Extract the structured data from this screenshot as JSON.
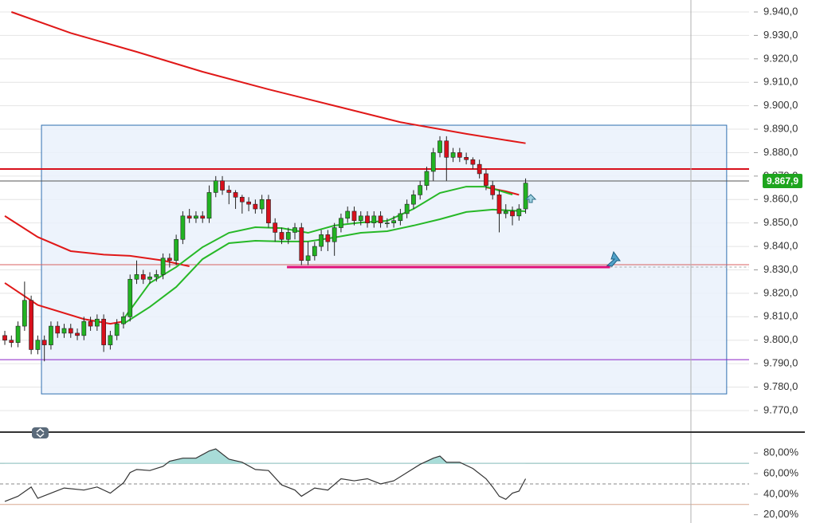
{
  "chart_data": [
    {
      "type": "candlestick",
      "open": [
        9.802,
        9.8,
        9.799,
        9.806,
        9.817,
        9.796,
        9.8,
        9.798,
        9.806,
        9.803,
        9.805,
        9.803,
        9.802,
        9.808,
        9.806,
        9.809,
        9.798,
        9.802,
        9.807,
        9.81,
        9.826,
        9.828,
        9.826,
        9.827,
        9.828,
        9.835,
        9.834,
        9.843,
        9.853,
        9.852,
        9.853,
        9.852,
        9.863,
        9.868,
        9.864,
        9.863,
        9.861,
        9.859,
        9.858,
        9.856,
        9.86,
        9.85,
        9.846,
        9.843,
        9.846,
        9.848,
        9.834,
        9.836,
        9.84,
        9.845,
        9.842,
        9.848,
        9.852,
        9.855,
        9.851,
        9.853,
        9.85,
        9.853,
        9.85,
        9.85,
        9.851,
        9.854,
        9.858,
        9.862,
        9.866,
        9.872,
        9.88,
        9.885,
        9.878,
        9.88,
        9.878,
        9.877,
        9.875,
        9.871,
        9.866,
        9.862,
        9.854,
        9.855,
        9.853,
        9.856
      ],
      "high": [
        9.804,
        9.802,
        9.808,
        9.825,
        9.819,
        9.802,
        9.802,
        9.808,
        9.808,
        9.807,
        9.807,
        9.805,
        9.81,
        9.81,
        9.811,
        9.811,
        9.804,
        9.809,
        9.812,
        9.828,
        9.834,
        9.83,
        9.829,
        9.83,
        9.837,
        9.837,
        9.845,
        9.855,
        9.856,
        9.855,
        9.855,
        9.866,
        9.87,
        9.87,
        9.866,
        9.864,
        9.862,
        9.861,
        9.86,
        9.862,
        9.862,
        9.852,
        9.848,
        9.848,
        9.85,
        9.85,
        9.842,
        9.842,
        9.847,
        9.847,
        9.85,
        9.854,
        9.857,
        9.857,
        9.855,
        9.855,
        9.855,
        9.855,
        9.852,
        9.853,
        9.856,
        9.86,
        9.864,
        9.868,
        9.874,
        9.882,
        9.887,
        9.887,
        9.882,
        9.882,
        9.88,
        9.878,
        9.877,
        9.873,
        9.868,
        9.864,
        9.858,
        9.857,
        9.858,
        9.869
      ],
      "low": [
        9.798,
        9.797,
        9.797,
        9.804,
        9.794,
        9.794,
        9.791,
        9.796,
        9.801,
        9.801,
        9.801,
        9.8,
        9.8,
        9.804,
        9.804,
        9.795,
        9.796,
        9.8,
        9.805,
        9.808,
        9.824,
        9.824,
        9.824,
        9.825,
        9.826,
        9.831,
        9.832,
        9.841,
        9.85,
        9.85,
        9.85,
        9.85,
        9.861,
        9.862,
        9.858,
        9.856,
        9.854,
        9.855,
        9.854,
        9.854,
        9.848,
        9.842,
        9.841,
        9.841,
        9.843,
        9.832,
        9.832,
        9.834,
        9.838,
        9.838,
        9.836,
        9.846,
        9.85,
        9.849,
        9.849,
        9.848,
        9.848,
        9.848,
        9.848,
        9.848,
        9.849,
        9.852,
        9.856,
        9.86,
        9.864,
        9.868,
        9.878,
        9.868,
        9.876,
        9.876,
        9.875,
        9.873,
        9.869,
        9.864,
        9.86,
        9.846,
        9.852,
        9.849,
        9.851,
        9.854
      ],
      "close": [
        9.8,
        9.799,
        9.806,
        9.817,
        9.796,
        9.8,
        9.798,
        9.806,
        9.803,
        9.805,
        9.803,
        9.802,
        9.808,
        9.806,
        9.809,
        9.798,
        9.802,
        9.807,
        9.81,
        9.826,
        9.828,
        9.826,
        9.827,
        9.828,
        9.835,
        9.834,
        9.843,
        9.853,
        9.852,
        9.853,
        9.852,
        9.863,
        9.868,
        9.864,
        9.863,
        9.861,
        9.859,
        9.858,
        9.856,
        9.86,
        9.85,
        9.846,
        9.843,
        9.846,
        9.848,
        9.834,
        9.836,
        9.84,
        9.845,
        9.842,
        9.848,
        9.852,
        9.855,
        9.851,
        9.853,
        9.85,
        9.853,
        9.85,
        9.85,
        9.851,
        9.854,
        9.858,
        9.862,
        9.866,
        9.872,
        9.88,
        9.885,
        9.878,
        9.88,
        9.878,
        9.877,
        9.875,
        9.871,
        9.866,
        9.862,
        9.854,
        9.855,
        9.853,
        9.856,
        9.867
      ],
      "up_color": "#22b322",
      "down_color": "#d8101c",
      "lines": [
        {
          "color": "#e01818",
          "x": [
            1,
            10,
            20,
            30,
            40,
            50,
            60,
            70,
            79
          ],
          "values": [
            9.94,
            9.931,
            9.923,
            9.9145,
            9.907,
            9.9,
            9.893,
            9.888,
            9.884
          ]
        },
        {
          "color": "#e01818",
          "x": [
            0,
            5,
            10,
            15,
            19,
            24,
            28
          ],
          "values": [
            9.853,
            9.844,
            9.838,
            9.8365,
            9.836,
            9.834,
            9.8315
          ]
        },
        {
          "color": "#e01818",
          "x": [
            0,
            5,
            12,
            16,
            18
          ],
          "values": [
            9.8244,
            9.815,
            9.809,
            9.807,
            9.808
          ]
        },
        {
          "color": "#e01818",
          "x": [
            73,
            76,
            78
          ],
          "values": [
            9.8652,
            9.8635,
            9.862
          ]
        },
        {
          "color": "#27b827",
          "x": [
            18,
            22,
            26,
            30,
            34,
            38,
            42,
            46,
            50,
            54,
            58,
            62,
            66,
            70,
            73,
            77
          ],
          "values": [
            9.809,
            9.8244,
            9.8312,
            9.8397,
            9.8458,
            9.8482,
            9.8478,
            9.8458,
            9.8489,
            9.8502,
            9.8509,
            9.856,
            9.8628,
            9.8655,
            9.8655,
            9.8621
          ]
        },
        {
          "color": "#27b827",
          "x": [
            18,
            22,
            26,
            30,
            34,
            38,
            42,
            46,
            50,
            54,
            58,
            62,
            66,
            70,
            74,
            79
          ],
          "values": [
            9.807,
            9.8142,
            9.8227,
            9.8346,
            9.8414,
            9.8424,
            9.8421,
            9.8421,
            9.8438,
            9.8458,
            9.8465,
            9.8489,
            9.8516,
            9.8547,
            9.8557,
            9.855
          ]
        }
      ],
      "hlines": [
        {
          "value": 9.873,
          "color": "#d8101c"
        },
        {
          "value": 9.8679,
          "color": "#555555"
        },
        {
          "value": 9.8322,
          "color": "#d86060"
        },
        {
          "value": 9.7917,
          "color": "#8a20c8"
        }
      ],
      "segment": {
        "value": 9.8312,
        "x0": 42.8,
        "x1": 91.8,
        "color": "#e0107a"
      },
      "box": {
        "top": 9.8917,
        "bottom": 9.7771,
        "x0": 5.56,
        "x1": 109.5,
        "color": "#2f6fb0"
      },
      "last_price": {
        "value": 9.8679,
        "label": "9.867,9"
      },
      "xlim": [
        -0.73,
        112.9
      ],
      "ylim": [
        9.7608,
        9.9451
      ],
      "yticks": [
        {
          "value": 9.94,
          "label": "9.940,0"
        },
        {
          "value": 9.93,
          "label": "9.930,0"
        },
        {
          "value": 9.92,
          "label": "9.920,0"
        },
        {
          "value": 9.91,
          "label": "9.910,0"
        },
        {
          "value": 9.9,
          "label": "9.900,0"
        },
        {
          "value": 9.89,
          "label": "9.890,0"
        },
        {
          "value": 9.88,
          "label": "9.880,0"
        },
        {
          "value": 9.87,
          "label": "9.870,0"
        },
        {
          "value": 9.86,
          "label": "9.860,0"
        },
        {
          "value": 9.85,
          "label": "9.850,0"
        },
        {
          "value": 9.84,
          "label": "9.840,0"
        },
        {
          "value": 9.83,
          "label": "9.830,0"
        },
        {
          "value": 9.82,
          "label": "9.820,0"
        },
        {
          "value": 9.81,
          "label": "9.810,0"
        },
        {
          "value": 9.8,
          "label": "9.800,0"
        },
        {
          "value": 9.79,
          "label": "9.790,0"
        },
        {
          "value": 9.78,
          "label": "9.780,0"
        },
        {
          "value": 9.77,
          "label": "9.770,0"
        }
      ],
      "grid": true
    },
    {
      "type": "line",
      "x": [
        0,
        2,
        4,
        5,
        7,
        9,
        12,
        14,
        16,
        18,
        19,
        20,
        22,
        24,
        25,
        27,
        29,
        31,
        32,
        34,
        36,
        38,
        40,
        42,
        44,
        45,
        47,
        49,
        51,
        53,
        55,
        57,
        59,
        61,
        63,
        65,
        66,
        67,
        69,
        71,
        73,
        74,
        75,
        76,
        77,
        78,
        79
      ],
      "values": [
        33,
        38,
        47,
        36,
        41,
        46,
        44,
        47,
        41,
        51,
        61,
        64,
        63,
        67,
        72,
        75,
        75,
        82,
        84,
        74,
        71,
        64,
        63,
        49,
        44,
        38,
        46,
        44,
        55,
        53,
        55,
        50,
        53,
        61,
        69,
        75,
        77,
        71,
        71,
        65,
        55,
        47,
        38,
        35,
        41,
        43,
        55
      ],
      "color": "#333333",
      "fill_above": 70,
      "fill_color": "#a8dcd8",
      "hlines": [
        {
          "value": 70,
          "color": "#7fb8b4",
          "dashed": false
        },
        {
          "value": 50,
          "color": "#888888",
          "dashed": true
        },
        {
          "value": 30,
          "color": "#d8a890",
          "dashed": false
        }
      ],
      "xlim": [
        -0.73,
        112.9
      ],
      "ylim": [
        12,
        98
      ],
      "yticks": [
        {
          "value": 80,
          "label": "80,00%"
        },
        {
          "value": 60,
          "label": "60,00%"
        },
        {
          "value": 40,
          "label": "40,00%"
        },
        {
          "value": 20,
          "label": "20,00%"
        }
      ],
      "grid": true
    }
  ]
}
